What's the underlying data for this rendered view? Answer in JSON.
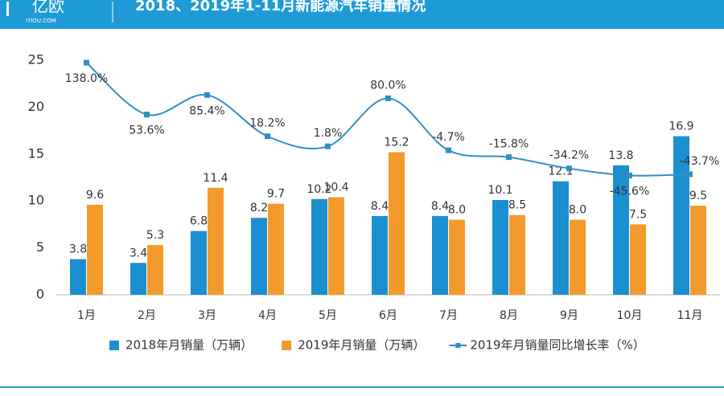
{
  "header": {
    "logo": "亿欧",
    "logo_sub": "IYIOU.COM"
  },
  "chart_data": {
    "type": "bar-line",
    "title": "2018、2019年1-11月新能源汽车销量情况",
    "categories": [
      "1月",
      "2月",
      "3月",
      "4月",
      "5月",
      "6月",
      "7月",
      "8月",
      "9月",
      "10月",
      "11月"
    ],
    "series": [
      {
        "name": "2018年月销量（万辆）",
        "type": "bar",
        "color": "#1b8fd0",
        "values": [
          3.8,
          3.4,
          6.8,
          8.2,
          10.2,
          8.4,
          8.4,
          10.1,
          12.1,
          13.8,
          16.9
        ],
        "value_labels": [
          "3.8",
          "3.4",
          "6.8",
          "8.2",
          "10.2",
          "8.4",
          "8.4",
          "10.1",
          "12.1",
          "13.8",
          "16.9"
        ]
      },
      {
        "name": "2019年月销量（万辆）",
        "type": "bar",
        "color": "#f39a2d",
        "values": [
          9.6,
          5.3,
          11.4,
          9.7,
          10.4,
          15.2,
          8.0,
          8.5,
          8.0,
          7.5,
          9.5
        ],
        "value_labels": [
          "9.6",
          "5.3",
          "11.4",
          "9.7",
          "10.4",
          "15.2",
          "8.0",
          "8.5",
          "8.0",
          "7.5",
          "9.5"
        ]
      },
      {
        "name": "2019年月销量同比增长率（%）",
        "type": "line",
        "axis": "y2",
        "color": "#2f8fc4",
        "values": [
          138.0,
          53.6,
          85.4,
          18.2,
          1.8,
          80.0,
          -4.7,
          -15.8,
          -34.2,
          -45.6,
          -43.7
        ],
        "value_labels": [
          "138.0%",
          "53.6%",
          "85.4%",
          "18.2%",
          "1.8%",
          "80.0%",
          "-4.7%",
          "-15.8%",
          "-34.2%",
          "-45.6%",
          "-43.7%"
        ]
      }
    ],
    "ylim": [
      0,
      25
    ],
    "yticks": [
      0,
      5,
      10,
      15,
      20,
      25
    ],
    "y2lim": [
      -240,
      142
    ],
    "grid": false
  }
}
